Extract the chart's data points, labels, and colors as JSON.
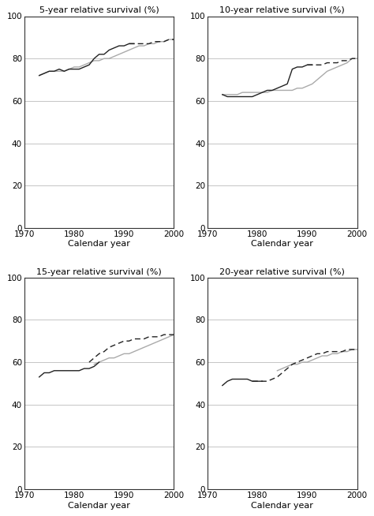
{
  "titles": [
    "5-year relative survival (%)",
    "10-year relative survival (%)",
    "15-year relative survival (%)",
    "20-year relative survival (%)"
  ],
  "xlabel": "Calendar year",
  "ylim": [
    0,
    100
  ],
  "yticks": [
    0,
    20,
    40,
    60,
    80,
    100
  ],
  "xlim": [
    1970,
    2000
  ],
  "xticks": [
    1970,
    1980,
    1990,
    2000
  ],
  "line_color_dark": "#222222",
  "line_color_light": "#aaaaaa",
  "background_color": "#ffffff",
  "panel1": {
    "dark_solid_x": [
      1973,
      1974,
      1975,
      1976,
      1977,
      1978,
      1979,
      1980,
      1981,
      1982,
      1983,
      1984,
      1985,
      1986,
      1987,
      1988,
      1989,
      1990,
      1991,
      1992
    ],
    "dark_solid_y": [
      72,
      73,
      74,
      74,
      75,
      74,
      75,
      75,
      75,
      76,
      77,
      80,
      82,
      82,
      84,
      85,
      86,
      86,
      87,
      87
    ],
    "dark_dashed_x": [
      1991,
      1992,
      1993,
      1994,
      1995,
      1996,
      1997,
      1998,
      1999,
      2000
    ],
    "dark_dashed_y": [
      87,
      87,
      87,
      87,
      87,
      88,
      88,
      88,
      89,
      89
    ],
    "light_solid_x": [
      1973,
      1974,
      1975,
      1976,
      1977,
      1978,
      1979,
      1980,
      1981,
      1982,
      1983,
      1984,
      1985,
      1986,
      1987,
      1988,
      1989,
      1990,
      1991,
      1992,
      1993,
      1994,
      1995,
      1996,
      1997,
      1998,
      1999,
      2000
    ],
    "light_solid_y": [
      72,
      73,
      74,
      74,
      74,
      74,
      75,
      76,
      76,
      77,
      78,
      79,
      79,
      80,
      80,
      81,
      82,
      83,
      84,
      85,
      86,
      86,
      87,
      87,
      88,
      88,
      89,
      89
    ]
  },
  "panel2": {
    "dark_solid_x": [
      1973,
      1974,
      1975,
      1976,
      1977,
      1978,
      1979,
      1980,
      1981,
      1982,
      1983,
      1984,
      1985,
      1986,
      1987,
      1988,
      1989,
      1990,
      1991
    ],
    "dark_solid_y": [
      63,
      62,
      62,
      62,
      62,
      62,
      62,
      63,
      64,
      65,
      65,
      66,
      67,
      68,
      75,
      76,
      76,
      77,
      77
    ],
    "dark_dashed_x": [
      1990,
      1991,
      1992,
      1993,
      1994,
      1995,
      1996,
      1997,
      1998,
      1999,
      2000
    ],
    "dark_dashed_y": [
      77,
      77,
      77,
      77,
      78,
      78,
      78,
      79,
      79,
      80,
      80
    ],
    "light_solid_x": [
      1973,
      1974,
      1975,
      1976,
      1977,
      1978,
      1979,
      1980,
      1981,
      1982,
      1983,
      1984,
      1985,
      1986,
      1987,
      1988,
      1989,
      1990,
      1991,
      1992,
      1993,
      1994,
      1995,
      1996,
      1997,
      1998,
      1999,
      2000
    ],
    "light_solid_y": [
      63,
      63,
      63,
      63,
      64,
      64,
      64,
      64,
      64,
      64,
      65,
      65,
      65,
      65,
      65,
      66,
      66,
      67,
      68,
      70,
      72,
      74,
      75,
      76,
      77,
      78,
      80,
      80
    ]
  },
  "panel3": {
    "dark_solid_x": [
      1973,
      1974,
      1975,
      1976,
      1977,
      1978,
      1979,
      1980,
      1981,
      1982,
      1983,
      1984,
      1985
    ],
    "dark_solid_y": [
      53,
      55,
      55,
      56,
      56,
      56,
      56,
      56,
      56,
      57,
      57,
      58,
      60
    ],
    "dark_dashed_x": [
      1983,
      1984,
      1985,
      1986,
      1987,
      1988,
      1989,
      1990,
      1991,
      1992,
      1993,
      1994,
      1995,
      1996,
      1997,
      1998,
      1999,
      2000
    ],
    "dark_dashed_y": [
      60,
      62,
      64,
      65,
      67,
      68,
      69,
      70,
      70,
      71,
      71,
      71,
      72,
      72,
      72,
      73,
      73,
      73
    ],
    "light_solid_x": [
      1984,
      1985,
      1986,
      1987,
      1988,
      1989,
      1990,
      1991,
      1992,
      1993,
      1994,
      1995,
      1996,
      1997,
      1998,
      1999,
      2000
    ],
    "light_solid_y": [
      59,
      60,
      61,
      62,
      62,
      63,
      64,
      64,
      65,
      66,
      67,
      68,
      69,
      70,
      71,
      72,
      73
    ]
  },
  "panel4": {
    "dark_solid_x": [
      1973,
      1974,
      1975,
      1976,
      1977,
      1978,
      1979,
      1980,
      1981
    ],
    "dark_solid_y": [
      49,
      51,
      52,
      52,
      52,
      52,
      51,
      51,
      51
    ],
    "dark_dashed_x": [
      1979,
      1980,
      1981,
      1982,
      1983,
      1984,
      1985,
      1986,
      1987,
      1988,
      1989,
      1990,
      1991,
      1992,
      1993,
      1994,
      1995,
      1996,
      1997,
      1998,
      1999,
      2000
    ],
    "dark_dashed_y": [
      51,
      51,
      51,
      51,
      52,
      53,
      55,
      57,
      59,
      60,
      61,
      62,
      63,
      64,
      64,
      65,
      65,
      65,
      65,
      66,
      66,
      66
    ],
    "light_solid_x": [
      1984,
      1985,
      1986,
      1987,
      1988,
      1989,
      1990,
      1991,
      1992,
      1993,
      1994,
      1995,
      1996,
      1997,
      1998,
      1999,
      2000
    ],
    "light_solid_y": [
      56,
      57,
      58,
      59,
      59,
      60,
      60,
      61,
      62,
      63,
      63,
      64,
      64,
      65,
      65,
      66,
      66
    ]
  }
}
